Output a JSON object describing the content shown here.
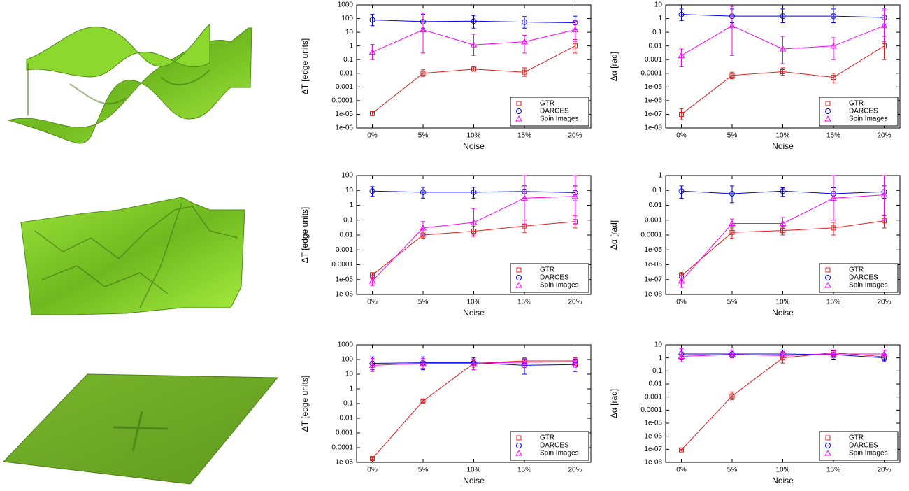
{
  "chart_data": [
    {
      "type": "line",
      "log_y": true,
      "legend": "lower right",
      "xlabel": "Noise",
      "ylabel": "ΔT [edge units]",
      "categories": [
        "0%",
        "5%",
        "10%",
        "15%",
        "20%"
      ],
      "ylim": [
        1e-06,
        1000
      ],
      "yticks": [
        {
          "value": 1e-06,
          "label": "1e-06"
        },
        {
          "value": 1e-05,
          "label": "1e-05"
        },
        0.0001,
        0.001,
        0.01,
        0.1,
        1,
        10,
        100,
        1000
      ],
      "series": [
        {
          "name": "GTR",
          "color": "#e41a1c",
          "marker": "square",
          "values": [
            1.2e-05,
            0.01,
            0.02,
            0.012,
            1
          ],
          "errors": [
            [
              8e-06,
              1.6e-05
            ],
            [
              0.006,
              0.018
            ],
            [
              0.015,
              0.03
            ],
            [
              0.006,
              0.025
            ],
            [
              0.3,
              3
            ]
          ]
        },
        {
          "name": "DARCES",
          "color": "#0000ee",
          "marker": "circle",
          "values": [
            80,
            60,
            65,
            55,
            50
          ],
          "errors": [
            [
              30,
              200
            ],
            [
              20,
              200
            ],
            [
              20,
              160
            ],
            [
              20,
              140
            ],
            [
              15,
              150
            ]
          ]
        },
        {
          "name": "Spin Images",
          "color": "#ff00ff",
          "marker": "triangle",
          "values": [
            0.35,
            15,
            1.2,
            2,
            15
          ],
          "errors": [
            [
              0.1,
              1.3
            ],
            [
              0.3,
              250
            ],
            [
              0.2,
              7
            ],
            [
              0.3,
              6
            ],
            [
              2,
              60
            ]
          ]
        }
      ]
    },
    {
      "type": "line",
      "log_y": true,
      "legend": "lower right",
      "xlabel": "Noise",
      "ylabel": "Δα [rad]",
      "categories": [
        "0%",
        "5%",
        "10%",
        "15%",
        "20%"
      ],
      "ylim": [
        1e-08,
        10
      ],
      "yticks": [
        {
          "value": 1e-08,
          "label": "1e-08"
        },
        {
          "value": 1e-07,
          "label": "1e-07"
        },
        {
          "value": 1e-06,
          "label": "1e-06"
        },
        {
          "value": 1e-05,
          "label": "1e-05"
        },
        0.0001,
        0.001,
        0.01,
        0.1,
        1,
        10
      ],
      "series": [
        {
          "name": "GTR",
          "color": "#e41a1c",
          "marker": "square",
          "values": [
            1e-07,
            7e-05,
            0.00013,
            5e-05,
            0.01
          ],
          "errors": [
            [
              4e-08,
              2.5e-07
            ],
            [
              4e-05,
              0.00012
            ],
            [
              7e-05,
              0.00025
            ],
            [
              2e-05,
              0.0001
            ],
            [
              0.001,
              0.05
            ]
          ]
        },
        {
          "name": "DARCES",
          "color": "#0000ee",
          "marker": "circle",
          "values": [
            2,
            1.5,
            1.5,
            1.5,
            1.2
          ],
          "errors": [
            [
              0.7,
              5
            ],
            [
              0.5,
              5
            ],
            [
              0.5,
              5
            ],
            [
              0.5,
              5
            ],
            [
              0.4,
              4
            ]
          ]
        },
        {
          "name": "Spin Images",
          "color": "#ff00ff",
          "marker": "triangle",
          "values": [
            0.002,
            0.3,
            0.006,
            0.01,
            0.3
          ],
          "errors": [
            [
              0.0003,
              0.006
            ],
            [
              0.002,
              8
            ],
            [
              0.0005,
              0.05
            ],
            [
              0.001,
              0.04
            ],
            [
              0.02,
              5
            ]
          ]
        }
      ]
    },
    {
      "type": "line",
      "log_y": true,
      "legend": "lower right",
      "xlabel": "Noise",
      "ylabel": "ΔT [edge units]",
      "categories": [
        "0%",
        "5%",
        "10%",
        "15%",
        "20%"
      ],
      "ylim": [
        1e-06,
        100
      ],
      "yticks": [
        {
          "value": 1e-06,
          "label": "1e-06"
        },
        {
          "value": 1e-05,
          "label": "1e-05"
        },
        0.0001,
        0.001,
        0.01,
        0.1,
        1,
        10,
        100
      ],
      "series": [
        {
          "name": "GTR",
          "color": "#e41a1c",
          "marker": "square",
          "values": [
            2e-05,
            0.01,
            0.018,
            0.04,
            0.08
          ],
          "errors": [
            [
              1.2e-05,
              3e-05
            ],
            [
              0.006,
              0.016
            ],
            [
              0.008,
              0.04
            ],
            [
              0.015,
              0.1
            ],
            [
              0.03,
              0.2
            ]
          ]
        },
        {
          "name": "DARCES",
          "color": "#0000ee",
          "marker": "circle",
          "values": [
            9,
            7.5,
            7.5,
            8.5,
            7
          ],
          "errors": [
            [
              4,
              18
            ],
            [
              3,
              16
            ],
            [
              3,
              16
            ],
            [
              3,
              20
            ],
            [
              2,
              20
            ]
          ]
        },
        {
          "name": "Spin Images",
          "color": "#ff00ff",
          "marker": "triangle",
          "values": [
            8e-06,
            0.03,
            0.07,
            3,
            4
          ],
          "errors": [
            [
              4e-06,
              2e-05
            ],
            [
              0.01,
              0.08
            ],
            [
              0.01,
              0.6
            ],
            [
              0.05,
              100
            ],
            [
              0.05,
              100
            ]
          ]
        }
      ]
    },
    {
      "type": "line",
      "log_y": true,
      "legend": "lower right",
      "xlabel": "Noise",
      "ylabel": "Δα [rad]",
      "categories": [
        "0%",
        "5%",
        "10%",
        "15%",
        "20%"
      ],
      "ylim": [
        1e-08,
        1
      ],
      "yticks": [
        {
          "value": 1e-08,
          "label": "1e-08"
        },
        {
          "value": 1e-07,
          "label": "1e-07"
        },
        {
          "value": 1e-06,
          "label": "1e-06"
        },
        {
          "value": 1e-05,
          "label": "1e-05"
        },
        0.0001,
        0.001,
        0.01,
        0.1,
        1
      ],
      "series": [
        {
          "name": "GTR",
          "color": "#e41a1c",
          "marker": "square",
          "values": [
            1.8e-07,
            0.00015,
            0.0002,
            0.0003,
            0.0009
          ],
          "errors": [
            [
              8e-08,
              3e-07
            ],
            [
              6e-05,
              0.0003
            ],
            [
              0.0001,
              0.0004
            ],
            [
              0.0001,
              0.0007
            ],
            [
              0.0003,
              0.002
            ]
          ]
        },
        {
          "name": "DARCES",
          "color": "#0000ee",
          "marker": "circle",
          "values": [
            0.09,
            0.06,
            0.09,
            0.06,
            0.08
          ],
          "errors": [
            [
              0.03,
              0.2
            ],
            [
              0.015,
              0.2
            ],
            [
              0.04,
              0.15
            ],
            [
              0.02,
              0.15
            ],
            [
              0.03,
              0.2
            ]
          ]
        },
        {
          "name": "Spin Images",
          "color": "#ff00ff",
          "marker": "triangle",
          "values": [
            8e-08,
            0.0006,
            0.0006,
            0.03,
            0.05
          ],
          "errors": [
            [
              3e-08,
              2e-07
            ],
            [
              0.0004,
              0.0012
            ],
            [
              0.0003,
              0.0015
            ],
            [
              0.001,
              1
            ],
            [
              0.001,
              1
            ]
          ]
        }
      ]
    },
    {
      "type": "line",
      "log_y": true,
      "legend": "lower right",
      "xlabel": "Noise",
      "ylabel": "ΔT [edge units]",
      "categories": [
        "0%",
        "5%",
        "10%",
        "15%",
        "20%"
      ],
      "ylim": [
        1e-05,
        1000
      ],
      "yticks": [
        {
          "value": 1e-05,
          "label": "1e-05"
        },
        0.0001,
        0.001,
        0.01,
        0.1,
        1,
        10,
        100,
        1000
      ],
      "series": [
        {
          "name": "GTR",
          "color": "#e41a1c",
          "marker": "square",
          "values": [
            1.8e-05,
            0.15,
            55,
            80,
            80
          ],
          "errors": [
            [
              1.6e-05,
              2e-05
            ],
            [
              0.12,
              0.18
            ],
            [
              30,
              100
            ],
            [
              40,
              130
            ],
            [
              40,
              140
            ]
          ]
        },
        {
          "name": "DARCES",
          "color": "#0000ee",
          "marker": "circle",
          "values": [
            55,
            60,
            60,
            40,
            45
          ],
          "errors": [
            [
              20,
              150
            ],
            [
              20,
              150
            ],
            [
              20,
              130
            ],
            [
              10,
              110
            ],
            [
              15,
              100
            ]
          ]
        },
        {
          "name": "Spin Images",
          "color": "#ff00ff",
          "marker": "triangle",
          "values": [
            40,
            55,
            55,
            65,
            70
          ],
          "errors": [
            [
              15,
              120
            ],
            [
              25,
              120
            ],
            [
              20,
              110
            ],
            [
              30,
              130
            ],
            [
              30,
              130
            ]
          ]
        }
      ]
    },
    {
      "type": "line",
      "log_y": true,
      "legend": "lower right",
      "xlabel": "Noise",
      "ylabel": "Δα [rad]",
      "categories": [
        "0%",
        "5%",
        "10%",
        "15%",
        "20%"
      ],
      "ylim": [
        1e-08,
        10
      ],
      "yticks": [
        {
          "value": 1e-08,
          "label": "1e-08"
        },
        {
          "value": 1e-07,
          "label": "1e-07"
        },
        {
          "value": 1e-06,
          "label": "1e-06"
        },
        {
          "value": 1e-05,
          "label": "1e-05"
        },
        0.0001,
        0.001,
        0.01,
        0.1,
        1,
        10
      ],
      "series": [
        {
          "name": "GTR",
          "color": "#e41a1c",
          "marker": "square",
          "values": [
            9e-08,
            0.0012,
            1,
            2.5,
            1.2
          ],
          "errors": [
            [
              8e-08,
              1e-07
            ],
            [
              0.0006,
              0.0025
            ],
            [
              0.4,
              2.5
            ],
            [
              1.5,
              4
            ],
            [
              0.6,
              2
            ]
          ]
        },
        {
          "name": "DARCES",
          "color": "#0000ee",
          "marker": "circle",
          "values": [
            2,
            2,
            2,
            1.8,
            1
          ],
          "errors": [
            [
              0.8,
              4
            ],
            [
              1,
              4
            ],
            [
              1,
              4
            ],
            [
              0.8,
              3.5
            ],
            [
              0.5,
              2
            ]
          ]
        },
        {
          "name": "Spin Images",
          "color": "#ff00ff",
          "marker": "triangle",
          "values": [
            1.3,
            1.8,
            1.5,
            2,
            2
          ],
          "errors": [
            [
              0.5,
              5
            ],
            [
              1,
              4
            ],
            [
              0.8,
              3
            ],
            [
              1,
              4
            ],
            [
              1,
              4
            ]
          ]
        }
      ]
    }
  ]
}
